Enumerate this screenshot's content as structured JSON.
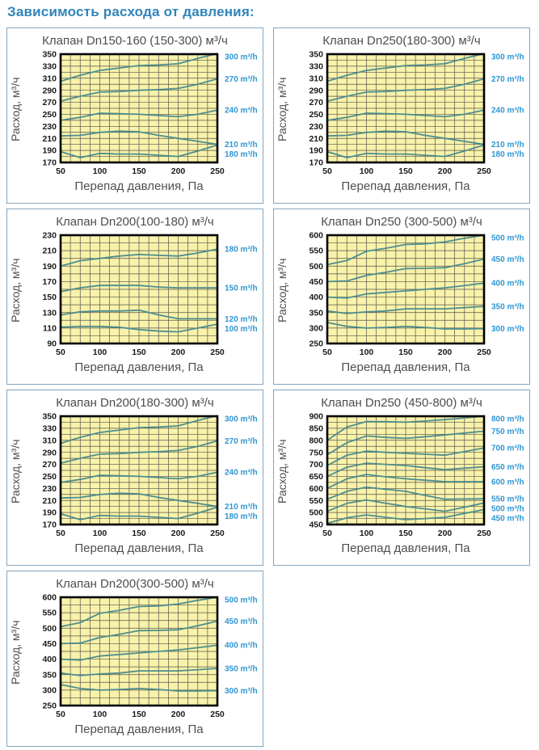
{
  "page": {
    "heading": "Зависимость расхода от давления:"
  },
  "colors": {
    "heading": "#3084ba",
    "panel_border": "#84a5bf",
    "plot_bg": "#f8f2ab",
    "grid": "#54544a",
    "frame": "#000000",
    "line": "#4e8e8e",
    "line_label": "#2f96d2",
    "tick": "#1a1a1a",
    "title": "#4d4d4d"
  },
  "chart_data": [
    {
      "type": "line",
      "title": "Клапан Dn150-160 (150-300) м³/ч",
      "xlabel": "Перепад давления, Па",
      "ylabel": "Расход, м³/ч",
      "xlim": [
        50,
        250
      ],
      "ylim": [
        170,
        350
      ],
      "xticks": [
        50,
        100,
        150,
        200,
        250
      ],
      "yticks": [
        170,
        190,
        210,
        230,
        250,
        270,
        290,
        310,
        330,
        350
      ],
      "x_minor_divs": 16,
      "y_minor_divs": 18,
      "x": [
        50,
        75,
        100,
        125,
        150,
        175,
        200,
        225,
        250
      ],
      "series": [
        {
          "name": "300 m³/h",
          "values": [
            305,
            315,
            323,
            327,
            331,
            332,
            334,
            343,
            351
          ]
        },
        {
          "name": "270 m³/h",
          "values": [
            272,
            280,
            287,
            288,
            290,
            291,
            293,
            300,
            309
          ]
        },
        {
          "name": "240 m³/h",
          "values": [
            240,
            245,
            252,
            251,
            250,
            248,
            246,
            250,
            257
          ]
        },
        {
          "name": "210 m³/h",
          "values": [
            214,
            215,
            220,
            222,
            221,
            215,
            210,
            205,
            200
          ]
        },
        {
          "name": "180 m³/h",
          "values": [
            188,
            178,
            185,
            184,
            184,
            182,
            180,
            189,
            199
          ]
        }
      ]
    },
    {
      "type": "line",
      "title": "Клапан Dn250(180-300) м³/ч",
      "xlabel": "Перепад давления, Па",
      "ylabel": "Расход, м³/ч",
      "xlim": [
        50,
        250
      ],
      "ylim": [
        170,
        350
      ],
      "xticks": [
        50,
        100,
        150,
        200,
        250
      ],
      "yticks": [
        170,
        190,
        210,
        230,
        250,
        270,
        290,
        310,
        330,
        350
      ],
      "x_minor_divs": 16,
      "y_minor_divs": 18,
      "x": [
        50,
        75,
        100,
        125,
        150,
        175,
        200,
        225,
        250
      ],
      "series": [
        {
          "name": "300 m³/h",
          "values": [
            305,
            315,
            323,
            327,
            331,
            332,
            334,
            343,
            351
          ]
        },
        {
          "name": "270 m³/h",
          "values": [
            272,
            280,
            287,
            288,
            290,
            291,
            293,
            300,
            309
          ]
        },
        {
          "name": "240 m³/h",
          "values": [
            240,
            245,
            252,
            251,
            250,
            248,
            246,
            250,
            257
          ]
        },
        {
          "name": "210 m³/h",
          "values": [
            214,
            215,
            220,
            222,
            221,
            215,
            210,
            205,
            200
          ]
        },
        {
          "name": "180 m³/h",
          "values": [
            188,
            178,
            185,
            184,
            184,
            182,
            180,
            189,
            199
          ]
        }
      ]
    },
    {
      "type": "line",
      "title": "Клапан Dn200(100-180) м³/ч",
      "xlabel": "Перепад давления, Па",
      "ylabel": "Расход, м³/ч",
      "xlim": [
        50,
        250
      ],
      "ylim": [
        90,
        230
      ],
      "xticks": [
        50,
        100,
        150,
        200,
        250
      ],
      "yticks": [
        90,
        110,
        130,
        150,
        170,
        190,
        210,
        230
      ],
      "x_minor_divs": 16,
      "y_minor_divs": 14,
      "x": [
        50,
        75,
        100,
        125,
        150,
        175,
        200,
        225,
        250
      ],
      "series": [
        {
          "name": "180 m³/h",
          "values": [
            190,
            197,
            200,
            203,
            205,
            204,
            203,
            207,
            212
          ]
        },
        {
          "name": "150 m³/h",
          "values": [
            157,
            162,
            165,
            165,
            165,
            163,
            162,
            162,
            162
          ]
        },
        {
          "name": "120 m³/h",
          "values": [
            127,
            131,
            132,
            132,
            133,
            127,
            122,
            122,
            122
          ]
        },
        {
          "name": "100 m³/h",
          "values": [
            111,
            112,
            112,
            111,
            108,
            106,
            105,
            110,
            115
          ]
        }
      ]
    },
    {
      "type": "line",
      "title": "Клапан Dn250 (300-500) м³/ч",
      "xlabel": "Перепад давления, Па",
      "ylabel": "Расход, м³/ч",
      "xlim": [
        50,
        250
      ],
      "ylim": [
        250,
        600
      ],
      "xticks": [
        50,
        100,
        150,
        200,
        250
      ],
      "yticks": [
        250,
        300,
        350,
        400,
        450,
        500,
        550,
        600
      ],
      "x_minor_divs": 16,
      "y_minor_divs": 14,
      "x": [
        50,
        75,
        100,
        125,
        150,
        175,
        200,
        225,
        250
      ],
      "series": [
        {
          "name": "500 m³/h",
          "values": [
            505,
            518,
            548,
            558,
            570,
            572,
            578,
            590,
            600
          ]
        },
        {
          "name": "450 m³/h",
          "values": [
            450,
            452,
            470,
            480,
            492,
            493,
            495,
            508,
            523
          ]
        },
        {
          "name": "400 m³/h",
          "values": [
            400,
            397,
            410,
            415,
            420,
            425,
            430,
            437,
            445
          ]
        },
        {
          "name": "350 m³/h",
          "values": [
            355,
            347,
            352,
            355,
            362,
            362,
            362,
            366,
            370
          ]
        },
        {
          "name": "300 m³/h",
          "values": [
            318,
            305,
            300,
            302,
            305,
            302,
            297,
            297,
            298
          ]
        }
      ]
    },
    {
      "type": "line",
      "title": "Клапан Dn200(180-300) м³/ч",
      "xlabel": "Перепад давления, Па",
      "ylabel": "Расход, м³/ч",
      "xlim": [
        50,
        250
      ],
      "ylim": [
        170,
        350
      ],
      "xticks": [
        50,
        100,
        150,
        200,
        250
      ],
      "yticks": [
        170,
        190,
        210,
        230,
        250,
        270,
        290,
        310,
        330,
        350
      ],
      "x_minor_divs": 16,
      "y_minor_divs": 18,
      "x": [
        50,
        75,
        100,
        125,
        150,
        175,
        200,
        225,
        250
      ],
      "series": [
        {
          "name": "300 m³/h",
          "values": [
            305,
            315,
            323,
            327,
            331,
            332,
            334,
            343,
            351
          ]
        },
        {
          "name": "270 m³/h",
          "values": [
            272,
            280,
            287,
            288,
            290,
            291,
            293,
            300,
            309
          ]
        },
        {
          "name": "240 m³/h",
          "values": [
            240,
            245,
            252,
            251,
            250,
            248,
            246,
            250,
            257
          ]
        },
        {
          "name": "210 m³/h",
          "values": [
            214,
            215,
            220,
            222,
            221,
            215,
            210,
            205,
            200
          ]
        },
        {
          "name": "180 m³/h",
          "values": [
            188,
            178,
            185,
            184,
            184,
            182,
            180,
            189,
            199
          ]
        }
      ]
    },
    {
      "type": "line",
      "title": "Клапан Dn250 (450-800) м³/ч",
      "xlabel": "Перепад давления, Па",
      "ylabel": "Расход, м³/ч",
      "xlim": [
        50,
        250
      ],
      "ylim": [
        450,
        900
      ],
      "xticks": [
        50,
        100,
        150,
        200,
        250
      ],
      "yticks": [
        450,
        500,
        550,
        600,
        650,
        700,
        750,
        800,
        850,
        900
      ],
      "x_minor_divs": 16,
      "y_minor_divs": 18,
      "x": [
        50,
        75,
        100,
        125,
        150,
        175,
        200,
        225,
        250
      ],
      "series": [
        {
          "name": "800 m³/h",
          "values": [
            800,
            855,
            878,
            877,
            875,
            880,
            886,
            893,
            900
          ]
        },
        {
          "name": "750 m³/h",
          "values": [
            740,
            790,
            818,
            812,
            808,
            815,
            822,
            830,
            838
          ]
        },
        {
          "name": "700 m³/h",
          "values": [
            695,
            738,
            755,
            750,
            746,
            742,
            738,
            753,
            768
          ]
        },
        {
          "name": "650 m³/h",
          "values": [
            650,
            688,
            705,
            700,
            695,
            686,
            678,
            684,
            690
          ]
        },
        {
          "name": "600 m³/h",
          "values": [
            600,
            640,
            658,
            648,
            640,
            634,
            628,
            628,
            628
          ]
        },
        {
          "name": "550 m³/h",
          "values": [
            555,
            588,
            605,
            596,
            588,
            571,
            555,
            556,
            557
          ]
        },
        {
          "name": "500 m³/h",
          "values": [
            505,
            538,
            552,
            538,
            525,
            515,
            505,
            522,
            540
          ]
        },
        {
          "name": "450 m³/h",
          "values": [
            455,
            478,
            490,
            480,
            470,
            475,
            480,
            496,
            512
          ]
        }
      ]
    },
    {
      "type": "line",
      "title": "Клапан Dn200(300-500) м³/ч",
      "xlabel": "Перепад давления, Па",
      "ylabel": "Расход, м³/ч",
      "xlim": [
        50,
        250
      ],
      "ylim": [
        250,
        600
      ],
      "xticks": [
        50,
        100,
        150,
        200,
        250
      ],
      "yticks": [
        250,
        300,
        350,
        400,
        450,
        500,
        550,
        600
      ],
      "x_minor_divs": 16,
      "y_minor_divs": 14,
      "x": [
        50,
        75,
        100,
        125,
        150,
        175,
        200,
        225,
        250
      ],
      "series": [
        {
          "name": "500 m³/h",
          "values": [
            505,
            518,
            548,
            558,
            570,
            572,
            578,
            590,
            600
          ]
        },
        {
          "name": "450 m³/h",
          "values": [
            450,
            452,
            470,
            480,
            492,
            493,
            495,
            508,
            523
          ]
        },
        {
          "name": "400 m³/h",
          "values": [
            400,
            397,
            410,
            415,
            420,
            425,
            430,
            437,
            445
          ]
        },
        {
          "name": "350 m³/h",
          "values": [
            355,
            347,
            352,
            355,
            362,
            362,
            362,
            366,
            370
          ]
        },
        {
          "name": "300 m³/h",
          "values": [
            318,
            305,
            300,
            302,
            305,
            302,
            297,
            297,
            298
          ]
        }
      ]
    }
  ]
}
